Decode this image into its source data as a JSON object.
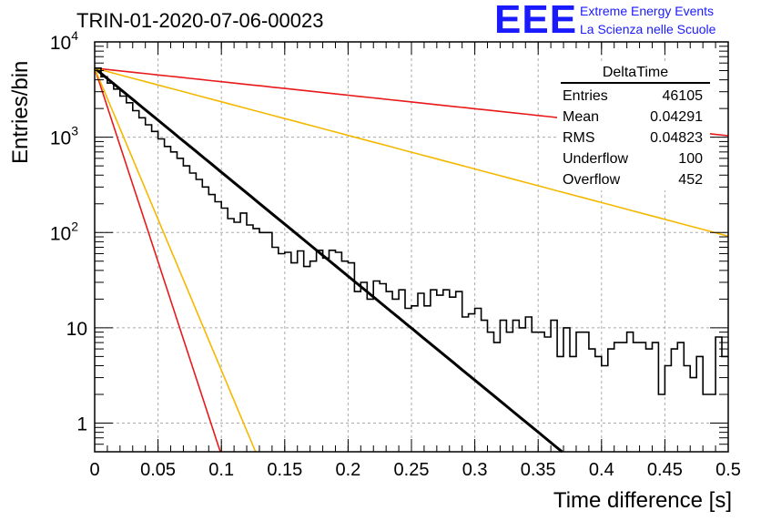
{
  "header": {
    "run_title": "TRIN-01-2020-07-06-00023",
    "logo_text": "EEE",
    "logo_line1": "Extreme Energy Events",
    "logo_line2": "La Scienza nelle Scuole",
    "logo_color": "#1a1aff"
  },
  "stats": {
    "title": "DeltaTime",
    "rows": [
      {
        "label": "Entries",
        "value": "46105"
      },
      {
        "label": "Mean",
        "value": "0.04291"
      },
      {
        "label": "RMS",
        "value": "0.04823"
      },
      {
        "label": "Underflow",
        "value": "100"
      },
      {
        "label": "Overflow",
        "value": "452"
      }
    ]
  },
  "chart_data": {
    "type": "line",
    "xlabel": "Time difference [s]",
    "ylabel": "Entries/bin",
    "xlim": [
      0,
      0.5
    ],
    "ylim": [
      0.5,
      10000
    ],
    "y_scale": "log",
    "grid": true,
    "x_ticks": [
      "0",
      "0.05",
      "0.1",
      "0.15",
      "0.2",
      "0.25",
      "0.3",
      "0.35",
      "0.4",
      "0.45",
      "0.5"
    ],
    "y_ticks": [
      {
        "value": 1,
        "label": "1"
      },
      {
        "value": 10,
        "label": "10"
      },
      {
        "value": 100,
        "label": "10",
        "sup": "2"
      },
      {
        "value": 1000,
        "label": "10",
        "sup": "3"
      },
      {
        "value": 10000,
        "label": "10",
        "sup": "4"
      }
    ],
    "histogram": {
      "name": "DeltaTime",
      "color": "#000000",
      "bin_width": 0.005,
      "bin_start": 0,
      "counts": [
        5300,
        4300,
        3700,
        3200,
        2700,
        2300,
        1900,
        1600,
        1350,
        1150,
        960,
        800,
        700,
        600,
        500,
        420,
        360,
        300,
        250,
        210,
        180,
        140,
        128,
        160,
        120,
        110,
        100,
        100,
        70,
        60,
        62,
        48,
        64,
        44,
        50,
        65,
        54,
        65,
        62,
        50,
        48,
        24,
        30,
        20,
        31,
        29,
        24,
        20,
        25,
        16,
        17,
        23,
        17,
        25,
        22,
        25,
        21,
        24,
        13,
        14,
        16,
        12,
        9,
        7,
        12,
        9,
        12,
        10,
        13,
        9,
        9,
        8,
        12,
        5,
        10,
        5,
        9,
        9,
        6,
        5,
        4,
        6,
        7,
        7,
        9,
        7,
        7,
        6,
        7,
        2,
        4,
        6,
        7,
        4,
        3,
        5,
        2,
        2,
        8,
        5
      ]
    },
    "fits": [
      {
        "color": "#000000",
        "a": 5300,
        "tau": 0.0398,
        "width": 3
      },
      {
        "color": "#e8191b",
        "a": 5300,
        "tau": 0.3062,
        "width": 1.6
      },
      {
        "color": "#e8191b",
        "a": 5300,
        "tau": 0.0107,
        "width": 1.6
      },
      {
        "color": "#f5b800",
        "a": 5300,
        "tau": 0.1232,
        "width": 1.6
      },
      {
        "color": "#f5b800",
        "a": 5300,
        "tau": 0.0137,
        "width": 1.6
      }
    ]
  }
}
